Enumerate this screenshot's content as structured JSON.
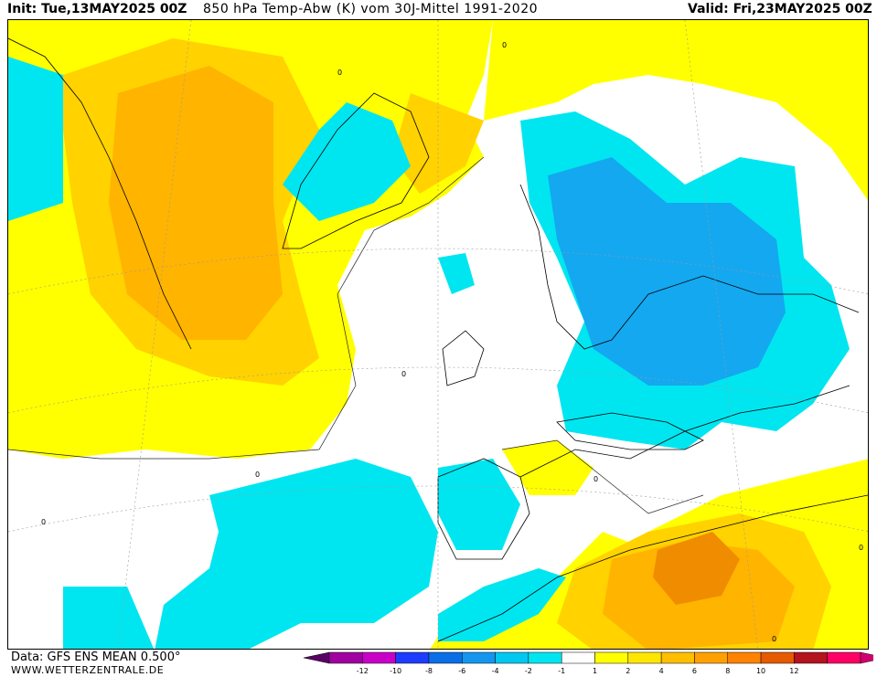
{
  "header": {
    "init": "Init: Tue,13MAY2025 00Z",
    "title": "850 hPa Temp-Abw (K) vom 30J-Mittel 1991-2020",
    "valid": "Valid: Fri,23MAY2025 00Z"
  },
  "footer": {
    "source": "Data: GFS ENS MEAN 0.500°",
    "site": "WWW.WETTERZENTRALE.DE"
  },
  "legend": {
    "labels": [
      "-12",
      "-10",
      "-8",
      "-6",
      "-4",
      "-2",
      "-1",
      "1",
      "2",
      "4",
      "6",
      "8",
      "10",
      "12"
    ],
    "colors": [
      "#a000a0",
      "#c800c8",
      "#1e3cff",
      "#0a6ee6",
      "#1496f0",
      "#00c8f0",
      "#00e6f0",
      "#ffffff",
      "#ffff00",
      "#ffe600",
      "#ffbe00",
      "#ffa000",
      "#ff8200",
      "#e65a00",
      "#b4141e",
      "#ff0064"
    ]
  },
  "map": {
    "palette": {
      "ocean_white": "#ffffff",
      "warm_1": "#ffff00",
      "warm_2": "#ffd200",
      "warm_3": "#ffb400",
      "warm_4": "#f08c00",
      "cold_1": "#00e6f0",
      "cold_2": "#14a8f0",
      "coast": "#000000"
    },
    "contour_labels": [
      "0",
      "0",
      "0",
      "0",
      "0",
      "0",
      "0",
      "0"
    ]
  }
}
